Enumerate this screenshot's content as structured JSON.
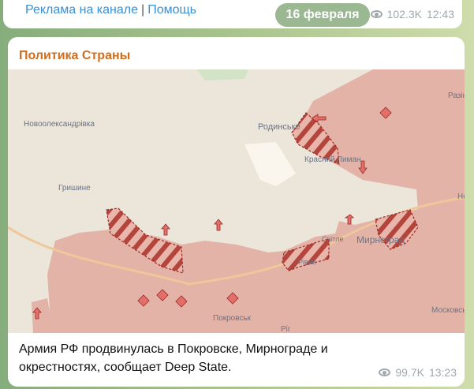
{
  "prev_message": {
    "link1": "Реклама на канале",
    "separator": "|",
    "link2": "Помощь",
    "views": "102.3K",
    "time": "12:43"
  },
  "date_pill": "16 февраля",
  "message": {
    "author": "Политика Страны",
    "caption": "Армия РФ продвинулась в Покровске, Мирнограде и окрестностях, сообщает Deep State.",
    "views": "99.7K",
    "time": "13:23"
  },
  "map": {
    "labels": [
      "Новоолександрівка",
      "Родинське",
      "Красний Лиман",
      "Разін",
      "Гришине",
      "Мирноград",
      "Покровськ",
      "Рiг",
      "Московськ",
      "Но",
      "Світле",
      "Рівне"
    ],
    "colors": {
      "occupied": "#e4b3a7",
      "free": "#ebe5da",
      "hatch": "#b4453c",
      "forest": "#cfe0c4"
    }
  }
}
